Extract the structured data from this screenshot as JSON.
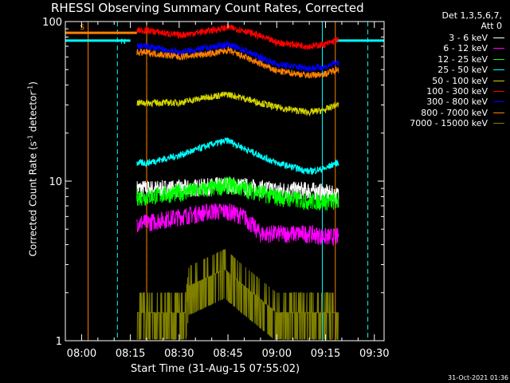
{
  "title": "RHESSI Observing Summary Count Rates, Corrected",
  "detector_info": [
    "Det 1,3,5,6,7,",
    "Att 0"
  ],
  "legend": [
    {
      "label": "3 - 6 keV",
      "color": "#ffffff"
    },
    {
      "label": "6 - 12 keV",
      "color": "#ff00ff"
    },
    {
      "label": "12 - 25 keV",
      "color": "#00ff00"
    },
    {
      "label": "25 - 50 keV",
      "color": "#00ffff"
    },
    {
      "label": "50 - 100 keV",
      "color": "#d4d400"
    },
    {
      "label": "100 - 300 keV",
      "color": "#ff0000"
    },
    {
      "label": "300 - 800 keV",
      "color": "#0000ff"
    },
    {
      "label": "800 - 7000 keV",
      "color": "#ff8000"
    },
    {
      "label": "7000 - 15000 keV",
      "color": "#808000"
    }
  ],
  "ylabel_parts": [
    "Corrected Count Rate (s",
    "-1",
    " detector",
    "-1",
    ")"
  ],
  "xlabel": "Start Time (31-Aug-15 07:55:02)",
  "timestamp": "31-Oct-2021 01:36",
  "chart_data": {
    "type": "line",
    "title": "RHESSI Observing Summary Count Rates, Corrected",
    "xlabel": "Start Time (31-Aug-15 07:55:02)",
    "ylabel": "Corrected Count Rate (s-1 detector-1)",
    "yscale": "log",
    "ylim": [
      1,
      100
    ],
    "yticks": [
      1,
      10,
      100
    ],
    "xlim_minutes_after_0755": [
      0,
      98
    ],
    "xticks": [
      "08:00",
      "08:15",
      "08:30",
      "08:45",
      "09:00",
      "09:15",
      "09:30"
    ],
    "xtick_minutes_after_0755": [
      5,
      20,
      35,
      50,
      65,
      80,
      95
    ],
    "data_window": {
      "start": "08:17",
      "end": "09:19"
    },
    "series": [
      {
        "name": "3 - 6 keV",
        "color": "#ffffff",
        "time": [
          "08:20",
          "08:30",
          "08:40",
          "08:45",
          "08:50",
          "09:00",
          "09:10",
          "09:15",
          "09:18"
        ],
        "values": [
          9,
          9,
          9.3,
          9.5,
          9.3,
          8.8,
          8.8,
          8.5,
          8.2
        ]
      },
      {
        "name": "6 - 12 keV",
        "color": "#ff00ff",
        "time": [
          "08:20",
          "08:30",
          "08:40",
          "08:45",
          "08:50",
          "08:55",
          "09:00",
          "09:10",
          "09:15",
          "09:18"
        ],
        "values": [
          5.5,
          6,
          6.5,
          6.5,
          6,
          4.7,
          4.7,
          4.7,
          4.5,
          4.5
        ]
      },
      {
        "name": "12 - 25 keV",
        "color": "#00ff00",
        "time": [
          "08:20",
          "08:30",
          "08:40",
          "08:45",
          "08:50",
          "09:00",
          "09:10",
          "09:15",
          "09:18"
        ],
        "values": [
          8,
          8.5,
          9,
          9.5,
          9,
          8,
          7.5,
          7.5,
          7.5
        ]
      },
      {
        "name": "25 - 50 keV",
        "color": "#00ffff",
        "time": [
          "08:20",
          "08:30",
          "08:40",
          "08:45",
          "08:50",
          "09:00",
          "09:10",
          "09:15",
          "09:18"
        ],
        "values": [
          13,
          14.5,
          17,
          18,
          16,
          13,
          11.5,
          12,
          13
        ]
      },
      {
        "name": "50 - 100 keV",
        "color": "#d4d400",
        "time": [
          "08:20",
          "08:30",
          "08:40",
          "08:45",
          "08:50",
          "09:00",
          "09:10",
          "09:15",
          "09:18"
        ],
        "values": [
          31,
          31,
          34,
          35,
          33,
          29,
          27,
          28,
          30
        ]
      },
      {
        "name": "100 - 300 keV",
        "color": "#ff0000",
        "time": [
          "08:20",
          "08:30",
          "08:40",
          "08:45",
          "08:50",
          "09:00",
          "09:10",
          "09:15",
          "09:18"
        ],
        "values": [
          88,
          82,
          88,
          92,
          88,
          74,
          70,
          72,
          76
        ]
      },
      {
        "name": "300 - 800 keV",
        "color": "#0000ff",
        "time": [
          "08:20",
          "08:30",
          "08:40",
          "08:45",
          "08:50",
          "09:00",
          "09:10",
          "09:15",
          "09:18"
        ],
        "values": [
          70,
          64,
          69,
          72,
          66,
          54,
          51,
          52,
          55
        ]
      },
      {
        "name": "800 - 7000 keV",
        "color": "#ff8000",
        "time": [
          "08:20",
          "08:30",
          "08:40",
          "08:45",
          "08:50",
          "09:00",
          "09:10",
          "09:15",
          "09:18"
        ],
        "values": [
          64,
          60,
          63,
          66,
          60,
          49,
          46,
          47,
          50
        ]
      },
      {
        "name": "7000 - 15000 keV",
        "color": "#808000",
        "time": [
          "08:20",
          "08:32",
          "08:33",
          "08:44",
          "08:50",
          "09:00",
          "09:10",
          "09:18"
        ],
        "values": [
          1.5,
          1.5,
          2.2,
          2.8,
          2.2,
          1.5,
          1.5,
          1.5
        ]
      }
    ],
    "flags": [
      {
        "label": "S",
        "color": "#ff8000",
        "start": "07:55",
        "end": "08:17",
        "value": 85
      },
      {
        "label": "N",
        "color": "#00ffff",
        "start": "07:55",
        "end": "08:15",
        "value": 76
      },
      {
        "label": "",
        "color": "#00ffff",
        "start": "09:18",
        "end": "09:48",
        "value": 76
      }
    ],
    "vertical_markers": [
      {
        "time": "08:02",
        "color": "#ff8000",
        "style": "solid"
      },
      {
        "time": "08:11",
        "color": "#00ffff",
        "style": "dashed"
      },
      {
        "time": "08:20",
        "color": "#ff8000",
        "style": "dashed"
      },
      {
        "time": "08:20",
        "color": "#ff8000",
        "style": "solid"
      },
      {
        "time": "09:14",
        "color": "#00ffff",
        "style": "solid"
      },
      {
        "time": "09:18",
        "color": "#ff8000",
        "style": "solid"
      },
      {
        "time": "09:28",
        "color": "#00ffff",
        "style": "dashed"
      }
    ]
  }
}
